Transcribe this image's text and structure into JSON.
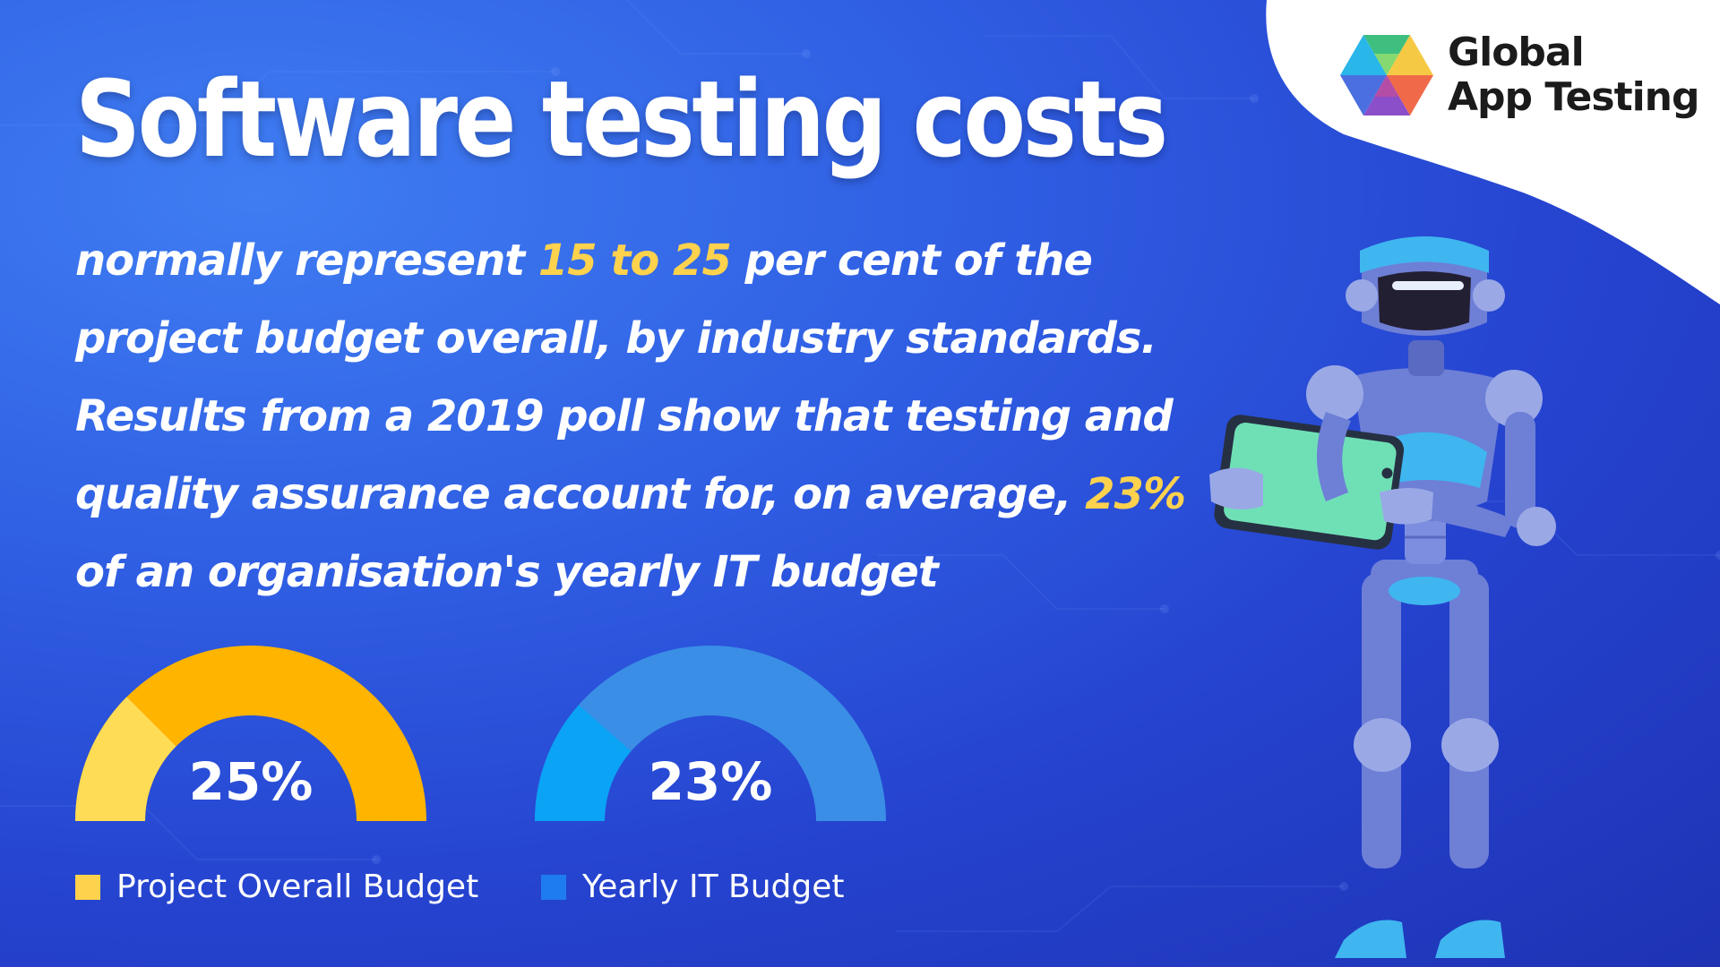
{
  "title": "Software testing costs",
  "body": {
    "line1_a": "normally represent ",
    "line1_hl": "15 to 25",
    "line1_b": " per cent of the",
    "line2": "project budget overall, by industry standards.",
    "line3": "Results from a 2019 poll show that testing and",
    "line4_a": "quality assurance account for, on average, ",
    "line4_hl": "23%",
    "line5": " of an organisation's yearly IT budget"
  },
  "logo": {
    "line1": "Global",
    "line2": "App Testing"
  },
  "colors": {
    "highlight": "#ffd24d",
    "gauge1_fill": "#ffb400",
    "gauge1_accent": "#ffdc55",
    "gauge2_fill": "#3a8ee6",
    "gauge2_accent": "#0aa3f5",
    "legend1": "#ffd24d",
    "legend2": "#1f7cf0"
  },
  "chart_data": [
    {
      "type": "gauge",
      "value": 25,
      "max": 100,
      "value_label": "25%",
      "legend": "Project Overall Budget"
    },
    {
      "type": "gauge",
      "value": 23,
      "max": 100,
      "value_label": "23%",
      "legend": "Yearly IT Budget"
    }
  ]
}
